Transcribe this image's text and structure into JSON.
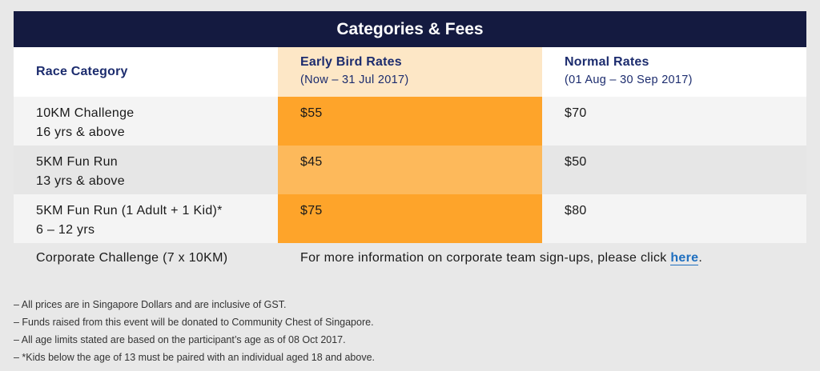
{
  "title": "Categories & Fees",
  "headers": {
    "category": "Race Category",
    "early_bird": "Early Bird Rates",
    "early_bird_period": "(Now – 31 Jul 2017)",
    "normal": "Normal Rates",
    "normal_period": "(01 Aug – 30 Sep 2017)"
  },
  "rows": [
    {
      "name": "10KM Challenge",
      "age": "16 yrs & above",
      "early": "$55",
      "normal": "$70"
    },
    {
      "name": "5KM Fun Run",
      "age": "13 yrs & above",
      "early": "$45",
      "normal": "$50"
    },
    {
      "name": "5KM Fun Run (1 Adult + 1 Kid)*",
      "age": "6 – 12 yrs",
      "early": "$75",
      "normal": "$80"
    }
  ],
  "corporate": {
    "name": "Corporate Challenge (7 x 10KM)",
    "info": "For more information on corporate team sign-ups, please click ",
    "link_label": "here",
    "suffix": "."
  },
  "notes": [
    "– All prices are in Singapore Dollars and are inclusive of GST.",
    "– Funds raised from this event will be donated to Community Chest of Singapore.",
    "– All age limits stated are based on the participant’s age as of 08 Oct 2017.",
    "– *Kids below the age of 13 must be paired with an individual aged 18 and above."
  ],
  "colors": {
    "title_bg": "#141a40",
    "header_text": "#1c2c6e",
    "early_header_bg": "#fde7c6",
    "early_dark": "#fea42a",
    "early_light": "#fdb95b",
    "link": "#1f6fbf"
  }
}
